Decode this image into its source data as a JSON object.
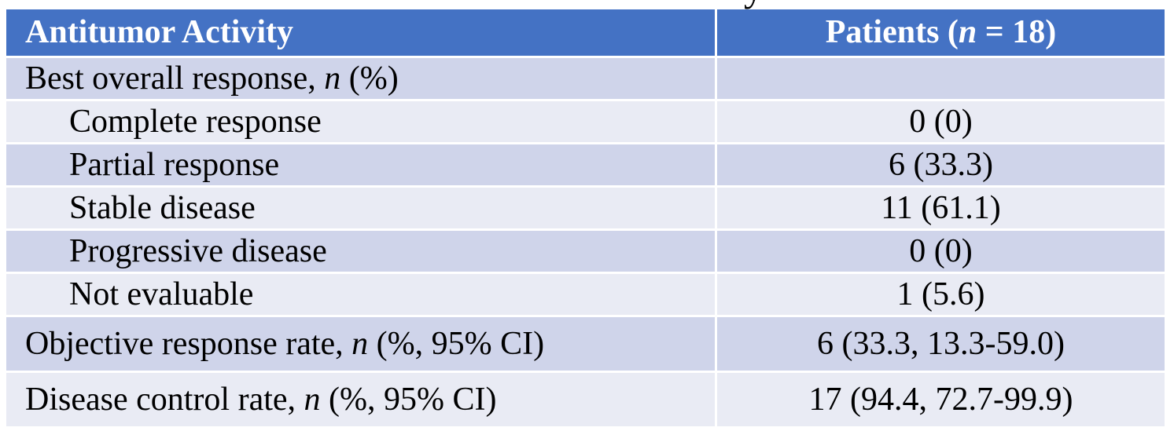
{
  "clipped_fragment": {
    "glyph": "y"
  },
  "colors": {
    "header_bg": "#4472c4",
    "header_text": "#ffffff",
    "row_dark": "#cfd4ea",
    "row_light": "#e9ebf4",
    "body_text": "#000000"
  },
  "table": {
    "header": {
      "col1": "Antitumor Activity",
      "col2_prefix": "Patients (",
      "col2_italic": "n",
      "col2_suffix": " = 18)"
    },
    "rows": [
      {
        "label": "Best overall response, ",
        "label_italic": "n",
        "label_suffix": " (%)",
        "value": "",
        "indent": false,
        "tall": false,
        "shade": "dark"
      },
      {
        "label": "Complete response",
        "value": "0 (0)",
        "indent": true,
        "tall": false,
        "shade": "light"
      },
      {
        "label": "Partial response",
        "value": "6 (33.3)",
        "indent": true,
        "tall": false,
        "shade": "dark"
      },
      {
        "label": "Stable disease",
        "value": "11 (61.1)",
        "indent": true,
        "tall": false,
        "shade": "light"
      },
      {
        "label": "Progressive disease",
        "value": "0 (0)",
        "indent": true,
        "tall": false,
        "shade": "dark"
      },
      {
        "label": "Not evaluable",
        "value": "1 (5.6)",
        "indent": true,
        "tall": false,
        "shade": "light"
      },
      {
        "label": "Objective response rate, ",
        "label_italic": "n",
        "label_suffix": " (%, 95% CI)",
        "value": "6 (33.3, 13.3-59.0)",
        "indent": false,
        "tall": true,
        "shade": "dark"
      },
      {
        "label": "Disease control rate, ",
        "label_italic": "n",
        "label_suffix": " (%, 95% CI)",
        "value": "17 (94.4, 72.7-99.9)",
        "indent": false,
        "tall": true,
        "shade": "light"
      }
    ]
  }
}
